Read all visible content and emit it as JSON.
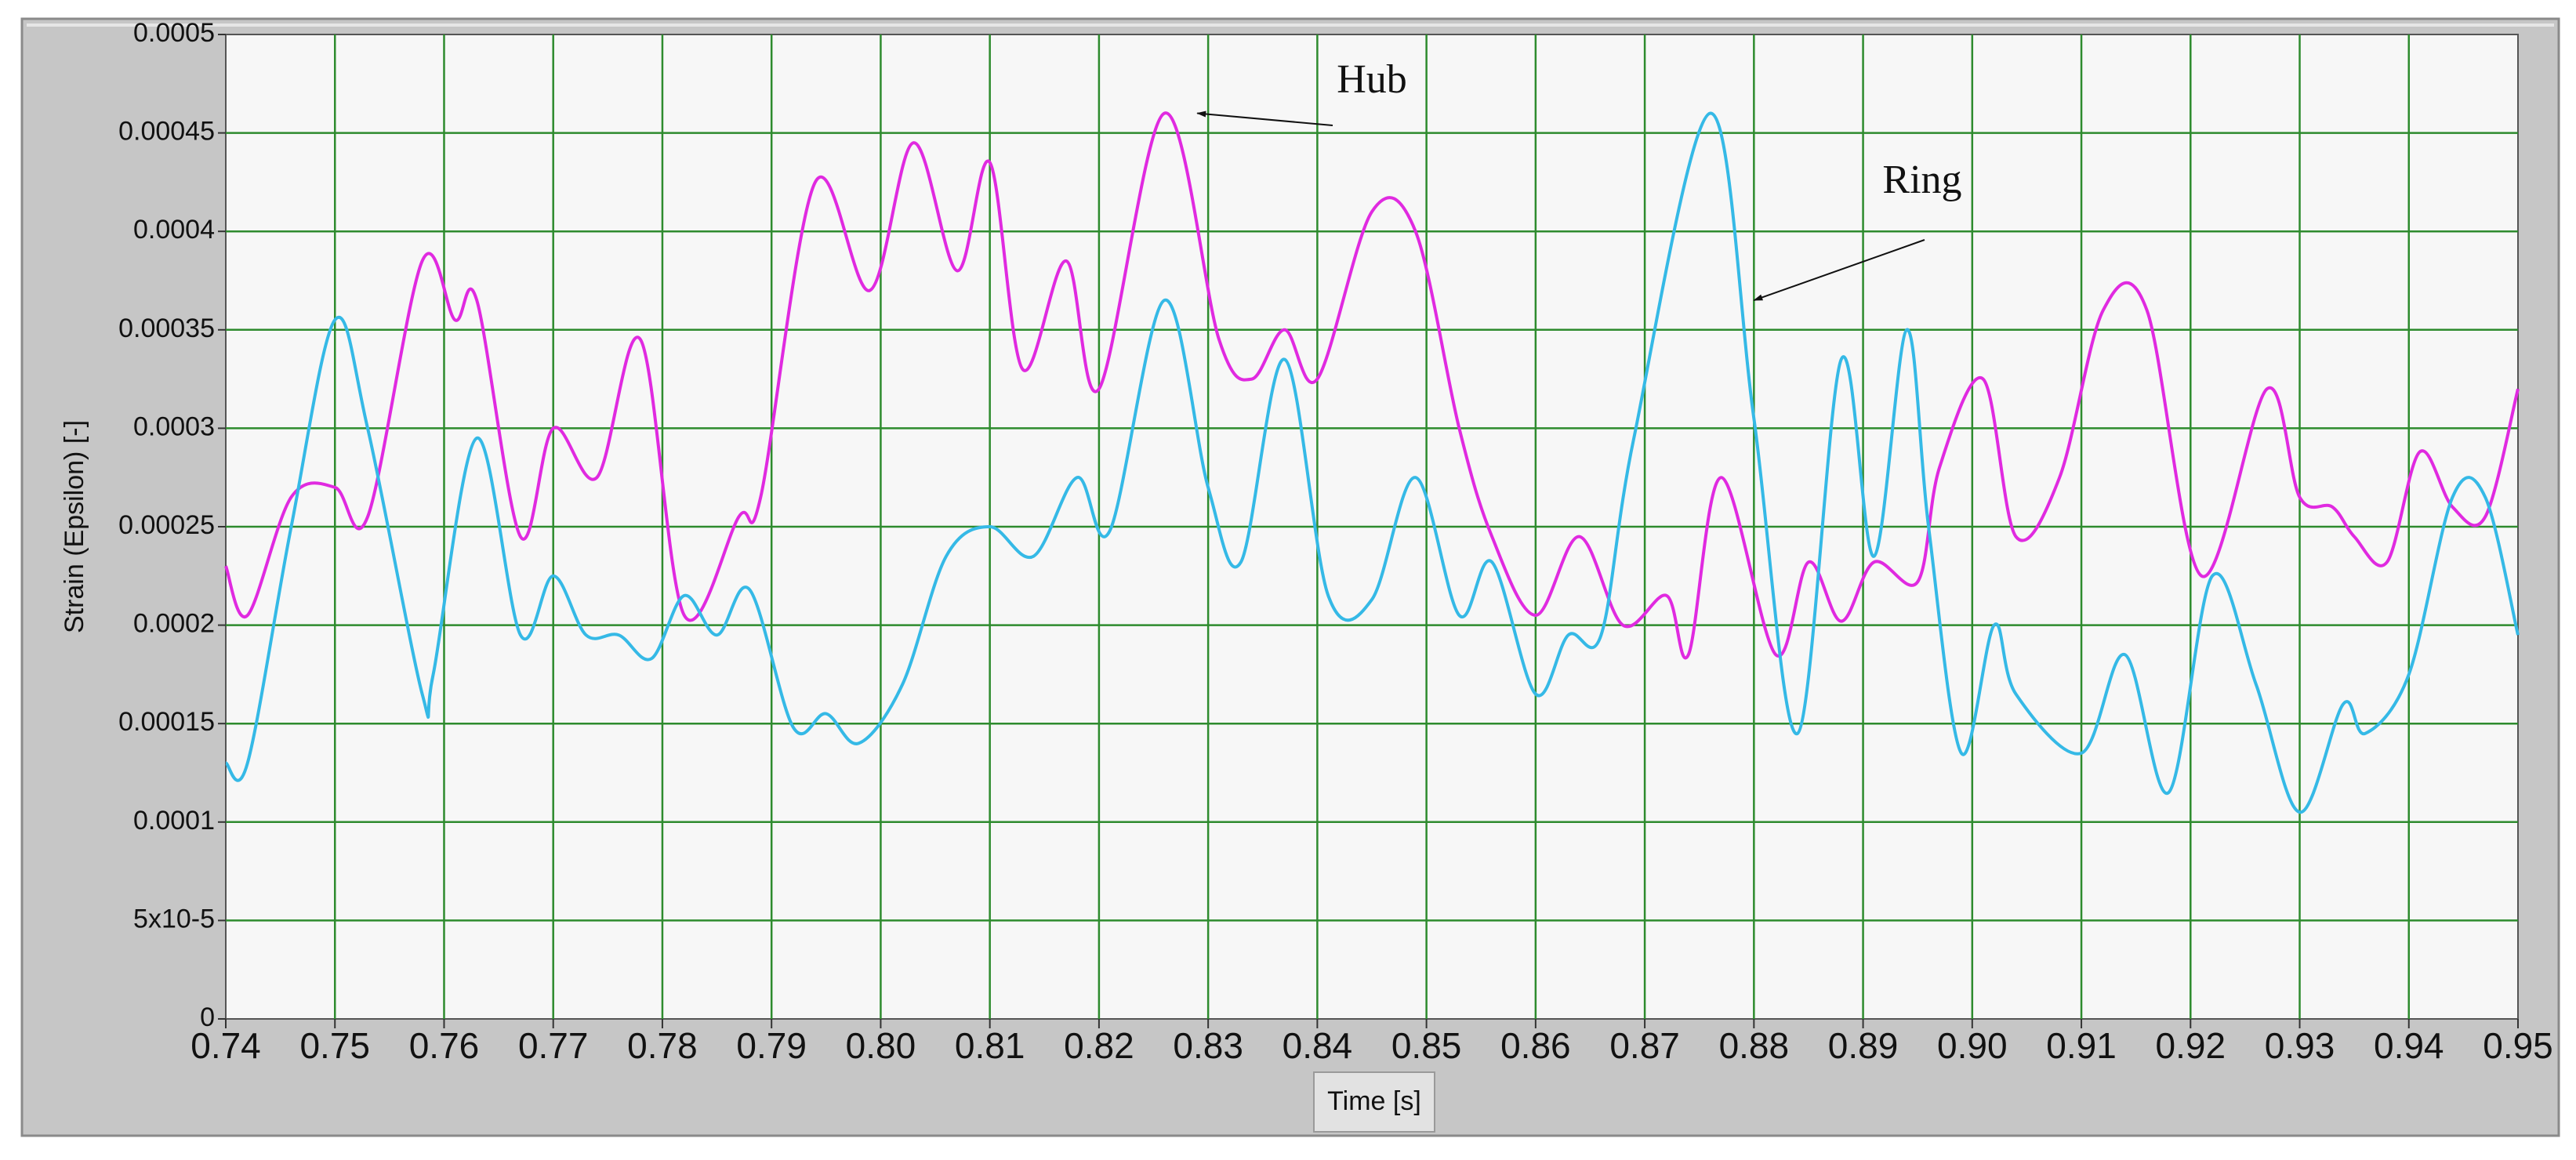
{
  "chart_data": {
    "type": "line",
    "title": "",
    "xlabel": "Time [s]",
    "ylabel": "Strain (Epsilon) [-]",
    "xlim": [
      0.74,
      0.95
    ],
    "ylim": [
      0,
      0.0005
    ],
    "grid": true,
    "x_ticks": [
      0.74,
      0.75,
      0.76,
      0.77,
      0.78,
      0.79,
      0.8,
      0.81,
      0.82,
      0.83,
      0.84,
      0.85,
      0.86,
      0.87,
      0.88,
      0.89,
      0.9,
      0.91,
      0.92,
      0.93,
      0.94,
      0.95
    ],
    "x_tick_labels": [
      "0.74",
      "0.75",
      "0.76",
      "0.77",
      "0.78",
      "0.79",
      "0.80",
      "0.81",
      "0.82",
      "0.83",
      "0.84",
      "0.85",
      "0.86",
      "0.87",
      "0.88",
      "0.89",
      "0.90",
      "0.91",
      "0.92",
      "0.93",
      "0.94",
      "0.95"
    ],
    "y_ticks": [
      0,
      5e-05,
      0.0001,
      0.00015,
      0.0002,
      0.00025,
      0.0003,
      0.00035,
      0.0004,
      0.00045,
      0.0005
    ],
    "y_tick_labels": [
      "0",
      "5x10-5",
      "0.0001",
      "0.00015",
      "0.0002",
      "0.00025",
      "0.0003",
      "0.00035",
      "0.0004",
      "0.00045",
      "0.0005"
    ],
    "annotations": [
      {
        "text": "Hub",
        "points_to": [
          0.829,
          0.00046
        ]
      },
      {
        "text": "Ring",
        "points_to": [
          0.88,
          0.000365
        ]
      }
    ],
    "series": [
      {
        "name": "Hub",
        "color": "#e02ae0",
        "x": [
          0.74,
          0.742,
          0.746,
          0.75,
          0.753,
          0.758,
          0.761,
          0.763,
          0.767,
          0.77,
          0.774,
          0.778,
          0.782,
          0.787,
          0.789,
          0.794,
          0.799,
          0.803,
          0.807,
          0.81,
          0.813,
          0.817,
          0.82,
          0.826,
          0.831,
          0.834,
          0.837,
          0.84,
          0.845,
          0.849,
          0.853,
          0.856,
          0.86,
          0.864,
          0.868,
          0.872,
          0.874,
          0.877,
          0.882,
          0.885,
          0.888,
          0.891,
          0.895,
          0.897,
          0.901,
          0.904,
          0.908,
          0.912,
          0.916,
          0.921,
          0.927,
          0.93,
          0.933,
          0.935,
          0.938,
          0.941,
          0.944,
          0.947,
          0.95
        ],
        "y": [
          0.00023,
          0.000205,
          0.000265,
          0.00027,
          0.000255,
          0.000385,
          0.000355,
          0.000365,
          0.000245,
          0.0003,
          0.000275,
          0.000345,
          0.000205,
          0.000255,
          0.000265,
          0.000425,
          0.00037,
          0.000445,
          0.00038,
          0.000435,
          0.00033,
          0.000385,
          0.00032,
          0.00046,
          0.000345,
          0.000325,
          0.00035,
          0.000325,
          0.00041,
          0.0004,
          0.0003,
          0.000245,
          0.000205,
          0.000245,
          0.0002,
          0.000215,
          0.000185,
          0.000275,
          0.000185,
          0.000232,
          0.000202,
          0.000232,
          0.000222,
          0.00028,
          0.000325,
          0.000245,
          0.000275,
          0.00036,
          0.00036,
          0.000225,
          0.00032,
          0.000265,
          0.00026,
          0.000245,
          0.000232,
          0.000288,
          0.00026,
          0.000255,
          0.00032
        ]
      },
      {
        "name": "Ring",
        "color": "#35b9e6",
        "x": [
          0.74,
          0.742,
          0.746,
          0.75,
          0.753,
          0.758,
          0.759,
          0.763,
          0.767,
          0.77,
          0.773,
          0.776,
          0.779,
          0.782,
          0.785,
          0.788,
          0.792,
          0.795,
          0.798,
          0.802,
          0.806,
          0.81,
          0.814,
          0.818,
          0.821,
          0.826,
          0.83,
          0.833,
          0.837,
          0.841,
          0.845,
          0.849,
          0.853,
          0.856,
          0.86,
          0.863,
          0.866,
          0.869,
          0.876,
          0.88,
          0.884,
          0.888,
          0.891,
          0.894,
          0.896,
          0.899,
          0.902,
          0.904,
          0.91,
          0.914,
          0.918,
          0.922,
          0.926,
          0.93,
          0.934,
          0.936,
          0.94,
          0.944,
          0.947,
          0.95
        ],
        "y": [
          0.00013,
          0.00013,
          0.00025,
          0.000355,
          0.0003,
          0.000165,
          0.000175,
          0.000295,
          0.000195,
          0.000225,
          0.000195,
          0.000195,
          0.000183,
          0.000215,
          0.000195,
          0.000218,
          0.000148,
          0.000155,
          0.00014,
          0.00017,
          0.000235,
          0.00025,
          0.000235,
          0.000275,
          0.000248,
          0.000365,
          0.00027,
          0.000232,
          0.000335,
          0.000215,
          0.000213,
          0.000275,
          0.000205,
          0.000232,
          0.000165,
          0.000195,
          0.000195,
          0.000295,
          0.00046,
          0.000305,
          0.000145,
          0.000335,
          0.000235,
          0.00035,
          0.00025,
          0.000135,
          0.0002,
          0.000165,
          0.000135,
          0.000185,
          0.000115,
          0.000225,
          0.00017,
          0.000105,
          0.00016,
          0.000145,
          0.000175,
          0.000265,
          0.000265,
          0.000195
        ]
      }
    ]
  }
}
